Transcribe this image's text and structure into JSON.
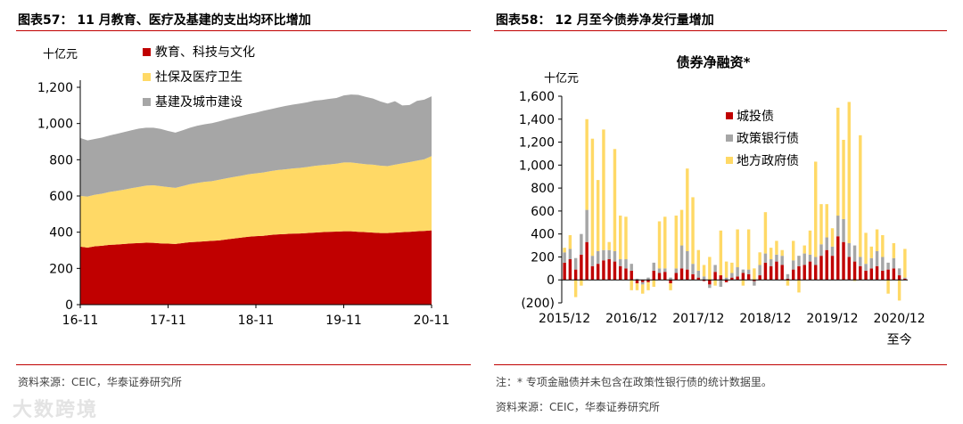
{
  "left": {
    "title": "图表57：  11 月教育、医疗及基建的支出均环比增加",
    "source": "资料来源：CEIC，华泰证券研究所"
  },
  "right": {
    "title": "图表58：  12 月至今债券净发行量增加",
    "note": "注：* 专项金融债并未包含在政策性银行债的统计数据里。",
    "source": "资料来源：CEIC，华泰证券研究所"
  },
  "watermark": "大数跨境",
  "colors": {
    "rule": "#c00000",
    "dark_red": "#c00000",
    "yellow": "#ffd966",
    "gray": "#a6a6a6"
  },
  "chart_data": [
    {
      "type": "area",
      "stacked": true,
      "unit_label": "十亿元",
      "x_tick_labels": [
        "16-11",
        "17-11",
        "18-11",
        "19-11",
        "20-11"
      ],
      "x": [
        "16-11",
        "16-12",
        "17-01",
        "17-02",
        "17-03",
        "17-04",
        "17-05",
        "17-06",
        "17-07",
        "17-08",
        "17-09",
        "17-10",
        "17-11",
        "17-12",
        "18-01",
        "18-02",
        "18-03",
        "18-04",
        "18-05",
        "18-06",
        "18-07",
        "18-08",
        "18-09",
        "18-10",
        "18-11",
        "18-12",
        "19-01",
        "19-02",
        "19-03",
        "19-04",
        "19-05",
        "19-06",
        "19-07",
        "19-08",
        "19-09",
        "19-10",
        "19-11",
        "19-12",
        "20-01",
        "20-02",
        "20-03",
        "20-04",
        "20-05",
        "20-06",
        "20-07",
        "20-08",
        "20-09",
        "20-10",
        "20-11"
      ],
      "ylim": [
        0,
        1200
      ],
      "yticks": [
        0,
        200,
        400,
        600,
        800,
        1000,
        1200
      ],
      "ytick_labels": [
        "0",
        "200",
        "400",
        "600",
        "800",
        "1,000",
        "1,200"
      ],
      "legend_position": "top-left",
      "series": [
        {
          "name": "教育、科技与文化",
          "color": "#c00000",
          "values": [
            320,
            315,
            322,
            325,
            330,
            332,
            335,
            338,
            340,
            342,
            341,
            338,
            337,
            335,
            340,
            345,
            347,
            350,
            352,
            355,
            360,
            365,
            370,
            375,
            378,
            380,
            385,
            388,
            390,
            392,
            393,
            395,
            398,
            400,
            402,
            403,
            405,
            405,
            402,
            400,
            398,
            395,
            395,
            398,
            400,
            402,
            405,
            407,
            410
          ]
        },
        {
          "name": "社保及医疗卫生",
          "color": "#ffd966",
          "values": [
            280,
            282,
            285,
            288,
            292,
            296,
            300,
            305,
            310,
            315,
            318,
            316,
            312,
            310,
            315,
            320,
            325,
            328,
            330,
            335,
            338,
            340,
            342,
            345,
            347,
            350,
            352,
            355,
            357,
            360,
            362,
            365,
            368,
            370,
            372,
            375,
            380,
            380,
            378,
            375,
            375,
            372,
            370,
            375,
            380,
            385,
            390,
            395,
            410
          ]
        },
        {
          "name": "基建及城市建设",
          "color": "#a6a6a6",
          "values": [
            320,
            310,
            308,
            310,
            312,
            315,
            318,
            320,
            322,
            320,
            318,
            316,
            310,
            305,
            308,
            312,
            316,
            318,
            320,
            322,
            325,
            328,
            330,
            332,
            335,
            340,
            342,
            345,
            350,
            352,
            355,
            357,
            360,
            360,
            362,
            363,
            370,
            375,
            378,
            372,
            365,
            355,
            345,
            350,
            320,
            315,
            330,
            330,
            330
          ]
        }
      ]
    },
    {
      "type": "bar",
      "title": "债券净融资*",
      "unit_label": "十亿元",
      "x_tick_labels": [
        "2015/12",
        "2016/12",
        "2017/12",
        "2018/12",
        "2019/12",
        "2020/12"
      ],
      "x_tick_sub": "至今",
      "x": [
        "2015/12",
        "2016/01",
        "2016/02",
        "2016/03",
        "2016/04",
        "2016/05",
        "2016/06",
        "2016/07",
        "2016/08",
        "2016/09",
        "2016/10",
        "2016/11",
        "2016/12",
        "2017/01",
        "2017/02",
        "2017/03",
        "2017/04",
        "2017/05",
        "2017/06",
        "2017/07",
        "2017/08",
        "2017/09",
        "2017/10",
        "2017/11",
        "2017/12",
        "2018/01",
        "2018/02",
        "2018/03",
        "2018/04",
        "2018/05",
        "2018/06",
        "2018/07",
        "2018/08",
        "2018/09",
        "2018/10",
        "2018/11",
        "2018/12",
        "2019/01",
        "2019/02",
        "2019/03",
        "2019/04",
        "2019/05",
        "2019/06",
        "2019/07",
        "2019/08",
        "2019/09",
        "2019/10",
        "2019/11",
        "2019/12",
        "2020/01",
        "2020/02",
        "2020/03",
        "2020/04",
        "2020/05",
        "2020/06",
        "2020/07",
        "2020/08",
        "2020/09",
        "2020/10",
        "2020/11",
        "2020/12",
        "2020/12至今"
      ],
      "ylim": [
        -200,
        1600
      ],
      "yticks": [
        -200,
        0,
        200,
        400,
        600,
        800,
        1000,
        1200,
        1400,
        1600
      ],
      "ytick_labels": [
        "(200)",
        "0",
        "200",
        "400",
        "600",
        "800",
        "1,000",
        "1,200",
        "1,400",
        "1,600"
      ],
      "legend_position": "top-left",
      "series": [
        {
          "name": "城投债",
          "color": "#c00000",
          "values": [
            150,
            180,
            90,
            220,
            330,
            120,
            140,
            170,
            180,
            160,
            120,
            100,
            80,
            -30,
            -20,
            -20,
            80,
            60,
            70,
            -30,
            60,
            100,
            90,
            50,
            20,
            -10,
            -40,
            70,
            40,
            -20,
            20,
            30,
            60,
            50,
            -10,
            40,
            150,
            120,
            160,
            130,
            10,
            90,
            120,
            130,
            160,
            130,
            210,
            260,
            210,
            380,
            330,
            200,
            160,
            120,
            80,
            100,
            120,
            80,
            90,
            100,
            40,
            10
          ]
        },
        {
          "name": "政策银行债",
          "color": "#a6a6a6",
          "values": [
            90,
            90,
            100,
            180,
            280,
            90,
            110,
            90,
            80,
            90,
            60,
            80,
            60,
            10,
            -20,
            20,
            70,
            40,
            30,
            20,
            40,
            200,
            160,
            90,
            60,
            30,
            -30,
            60,
            -60,
            20,
            40,
            80,
            30,
            40,
            -40,
            90,
            80,
            60,
            60,
            80,
            40,
            80,
            90,
            100,
            60,
            70,
            100,
            110,
            80,
            180,
            200,
            120,
            140,
            80,
            60,
            90,
            130,
            120,
            60,
            90,
            60,
            10
          ]
        },
        {
          "name": "地方政府债",
          "color": "#ffd966",
          "values": [
            40,
            120,
            -150,
            -50,
            790,
            1020,
            620,
            1050,
            70,
            890,
            380,
            370,
            -90,
            -60,
            -80,
            -70,
            -60,
            410,
            450,
            -60,
            460,
            310,
            720,
            580,
            180,
            100,
            200,
            -50,
            390,
            140,
            90,
            330,
            -50,
            350,
            100,
            110,
            360,
            100,
            120,
            50,
            -50,
            170,
            -110,
            70,
            210,
            830,
            350,
            290,
            160,
            940,
            690,
            1230,
            -10,
            1060,
            270,
            100,
            190,
            190,
            -120,
            130,
            -180,
            250
          ]
        }
      ]
    }
  ]
}
